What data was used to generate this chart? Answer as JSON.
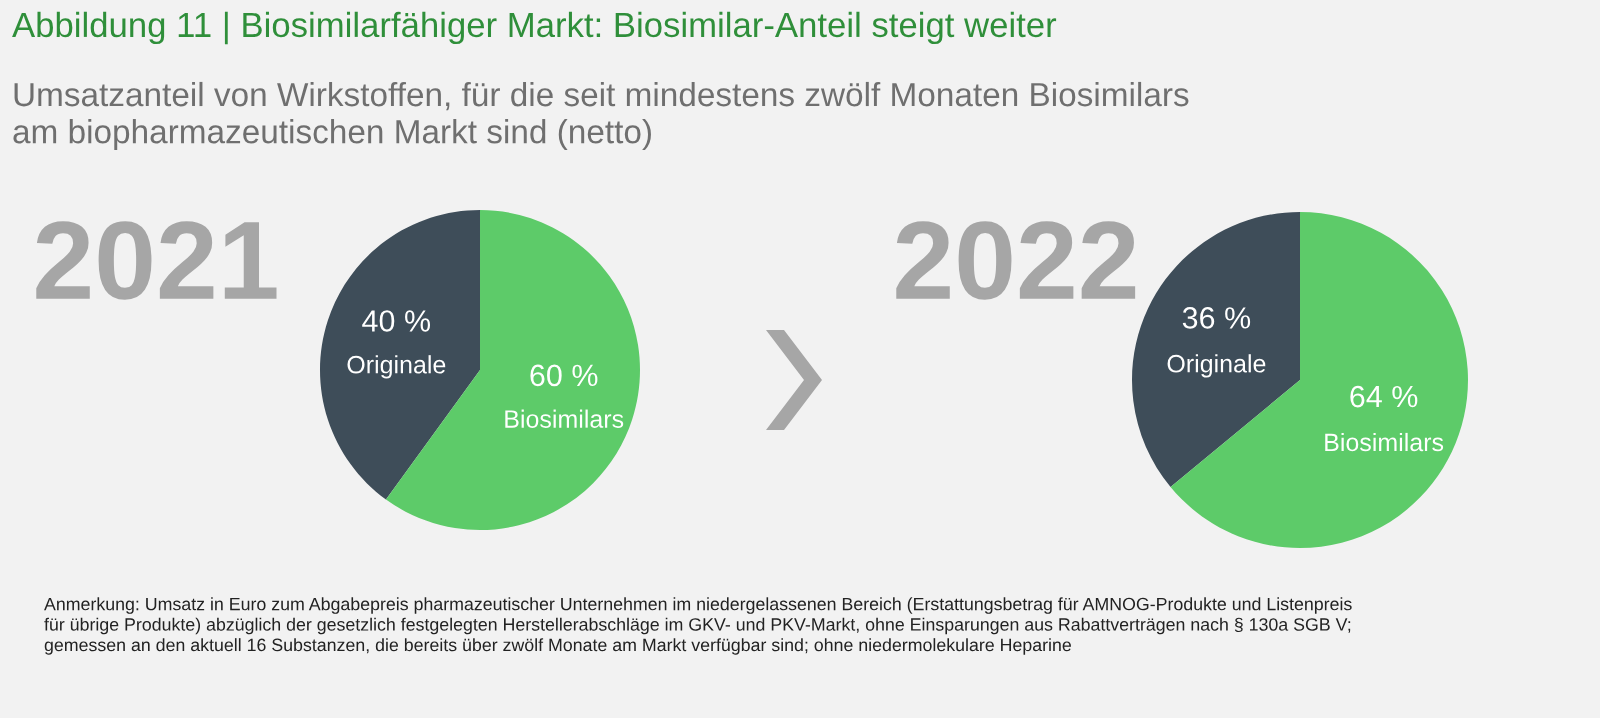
{
  "chart_data": [
    {
      "type": "pie",
      "title": "Abbildung 11 | Biosimilarfähiger Markt: Biosimilar-Anteil steigt weiter",
      "subtitle": "Umsatzanteil von Wirkstoffen, für die seit mindestens zwölf Monaten Biosimilars\nam biopharmazeutischen Markt sind (netto)",
      "categories": [
        "Originale",
        "Biosimilars"
      ],
      "values": [
        40,
        60
      ],
      "value_labels": [
        "40 %",
        "60 %"
      ],
      "colors": [
        "#3e4d59",
        "#5dcb69"
      ],
      "annotations": [
        "2021",
        "Anmerkung: Umsatz in Euro zum Abgabepreis pharmazeutischer Unternehmen im niedergelassenen Bereich (Erstattungsbetrag für AMNOG-Produkte und Listenpreis\nfür übrige Produkte) abzüglich der gesetzlich festgelegten Herstellerabschläge im GKV- und PKV-Markt, ohne Einsparungen aus Rabattverträgen nach § 130a SGB V;\ngemessen an den aktuell 16 Substanzen, die bereits über zwölf Monate am Markt verfügbar sind; ohne niedermolekulare Heparine"
      ]
    },
    {
      "type": "pie",
      "categories": [
        "Originale",
        "Biosimilars"
      ],
      "values": [
        36,
        64
      ],
      "value_labels": [
        "36 %",
        "64 %"
      ],
      "colors": [
        "#3e4d59",
        "#5dcb69"
      ],
      "annotations": [
        "2022"
      ]
    }
  ]
}
